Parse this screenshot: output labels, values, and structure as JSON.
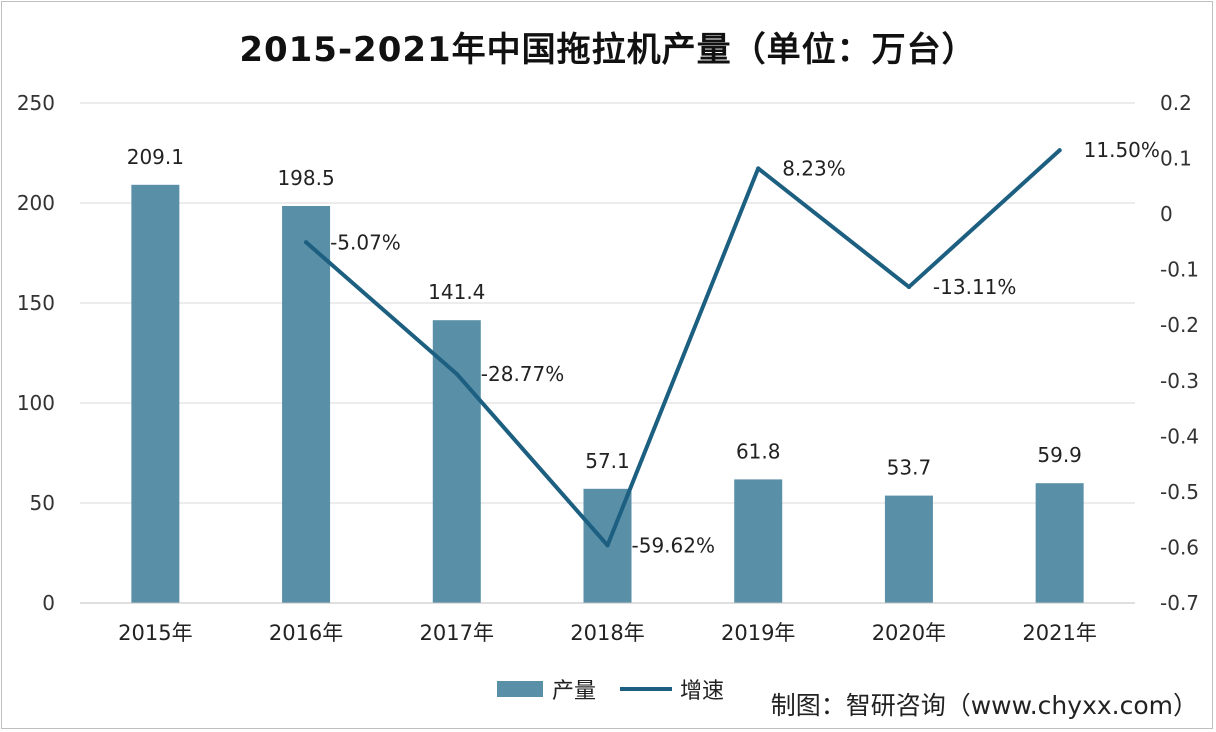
{
  "title": "2015-2021年中国拖拉机产量（单位：万台）",
  "source": "制图：智研咨询（www.chyxx.com）",
  "chart_data": {
    "type": "bar",
    "categories": [
      "2015年",
      "2016年",
      "2017年",
      "2018年",
      "2019年",
      "2020年",
      "2021年"
    ],
    "series": [
      {
        "name": "产量",
        "type": "bar",
        "axis": "left",
        "color": "#5a8fa8",
        "values": [
          209.1,
          198.5,
          141.4,
          57.1,
          61.8,
          53.7,
          59.9
        ],
        "labels": [
          "209.1",
          "198.5",
          "141.4",
          "57.1",
          "61.8",
          "53.7",
          "59.9"
        ]
      },
      {
        "name": "增速",
        "type": "line",
        "axis": "right",
        "color": "#1c5f80",
        "values": [
          null,
          -0.0507,
          -0.2877,
          -0.5962,
          0.0823,
          -0.1311,
          0.115
        ],
        "labels": [
          "",
          "-5.07%",
          "-28.77%",
          "-59.62%",
          "8.23%",
          "-13.11%",
          "11.50%"
        ]
      }
    ],
    "y_left": {
      "min": 0,
      "max": 250,
      "ticks": [
        "0",
        "50",
        "100",
        "150",
        "200",
        "250"
      ],
      "tick_values": [
        0,
        50,
        100,
        150,
        200,
        250
      ]
    },
    "y_right": {
      "min": -0.7,
      "max": 0.2,
      "ticks": [
        "-0.7",
        "-0.6",
        "-0.5",
        "-0.4",
        "-0.3",
        "-0.2",
        "-0.1",
        "0",
        "0.1",
        "0.2"
      ],
      "tick_values": [
        -0.7,
        -0.6,
        -0.5,
        -0.4,
        -0.3,
        -0.2,
        -0.1,
        0,
        0.1,
        0.2
      ]
    },
    "grid": true,
    "legend": "bottom"
  }
}
